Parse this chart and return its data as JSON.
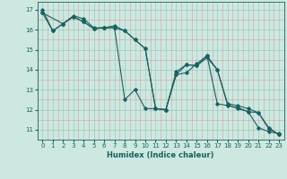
{
  "xlabel": "Humidex (Indice chaleur)",
  "xlim": [
    -0.5,
    23.5
  ],
  "ylim": [
    10.6,
    17.4
  ],
  "xticks": [
    0,
    1,
    2,
    3,
    4,
    5,
    6,
    7,
    8,
    9,
    10,
    11,
    12,
    13,
    14,
    15,
    16,
    17,
    18,
    19,
    20,
    21,
    22,
    23
  ],
  "yticks": [
    11,
    12,
    13,
    14,
    15,
    16,
    17
  ],
  "bg_color": "#cce8e0",
  "grid_color_major": "#a0c8c0",
  "grid_color_minor": "#e8b8b8",
  "line_color": "#1a6060",
  "series": [
    {
      "x": [
        0,
        1,
        2,
        3,
        4,
        5,
        6,
        7,
        8,
        9,
        10,
        11,
        12,
        13,
        14,
        15,
        16,
        17,
        18,
        19,
        20,
        21,
        22,
        23
      ],
      "y": [
        17.0,
        15.95,
        16.3,
        16.7,
        16.55,
        16.1,
        16.1,
        16.2,
        15.95,
        15.5,
        15.05,
        12.05,
        12.0,
        13.75,
        13.85,
        14.3,
        14.7,
        12.3,
        12.2,
        12.1,
        11.9,
        11.1,
        10.9,
        10.8
      ]
    },
    {
      "x": [
        0,
        2,
        3,
        4,
        5,
        6,
        7,
        8,
        9,
        10,
        11,
        12,
        13,
        14,
        15,
        16,
        17,
        18,
        19,
        20,
        21,
        22,
        23
      ],
      "y": [
        16.85,
        16.3,
        16.65,
        16.4,
        16.05,
        16.1,
        16.1,
        15.95,
        15.5,
        15.05,
        12.05,
        12.0,
        13.75,
        14.25,
        14.2,
        14.6,
        14.0,
        12.3,
        12.2,
        12.05,
        11.85,
        11.05,
        10.75
      ]
    },
    {
      "x": [
        0,
        1,
        2,
        3,
        4,
        5,
        6,
        7,
        8,
        9,
        10,
        11,
        12,
        13,
        14,
        15,
        16,
        17,
        18,
        19,
        20,
        21,
        22,
        23
      ],
      "y": [
        16.85,
        15.95,
        16.3,
        16.65,
        16.4,
        16.05,
        16.1,
        16.1,
        12.5,
        13.0,
        12.05,
        12.05,
        12.0,
        13.9,
        14.25,
        14.2,
        14.7,
        14.0,
        12.25,
        12.05,
        11.9,
        11.85,
        11.1,
        10.75
      ]
    }
  ]
}
